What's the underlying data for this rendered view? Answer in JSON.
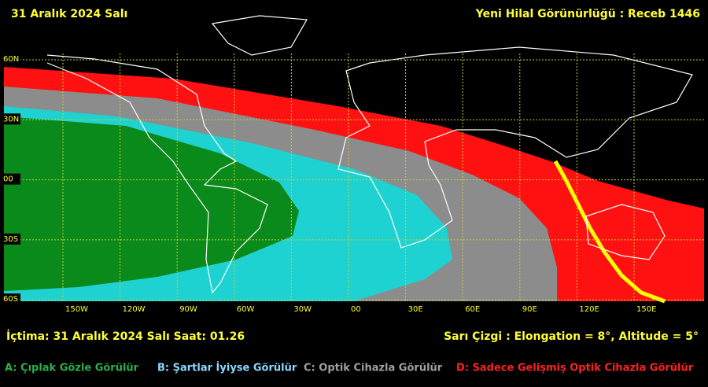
{
  "header": {
    "date": "31 Aralık 2024 Salı",
    "title": "Yeni Hilal Görünürlüğü : Receb 1446"
  },
  "map": {
    "lat_labels": [
      "60N",
      "30N",
      "00",
      "30S",
      "60S"
    ],
    "lon_labels": [
      "150W",
      "120W",
      "90W",
      "60W",
      "30W",
      "00",
      "30E",
      "60E",
      "90E",
      "120E",
      "150E"
    ]
  },
  "info": {
    "conjunction": "İçtima: 31 Aralık 2024 Salı  Saat: 01.26",
    "yellow_line": "Sarı Çizgi : Elongation = 8°, Altitude = 5°"
  },
  "legend": [
    "A: Çıplak Gözle Görülür",
    "B: Şartlar İyiyse Görülür",
    "C: Optik Cihazla Görülür",
    "D: Sadece Gelişmiş Optik Cihazla Görülür"
  ]
}
